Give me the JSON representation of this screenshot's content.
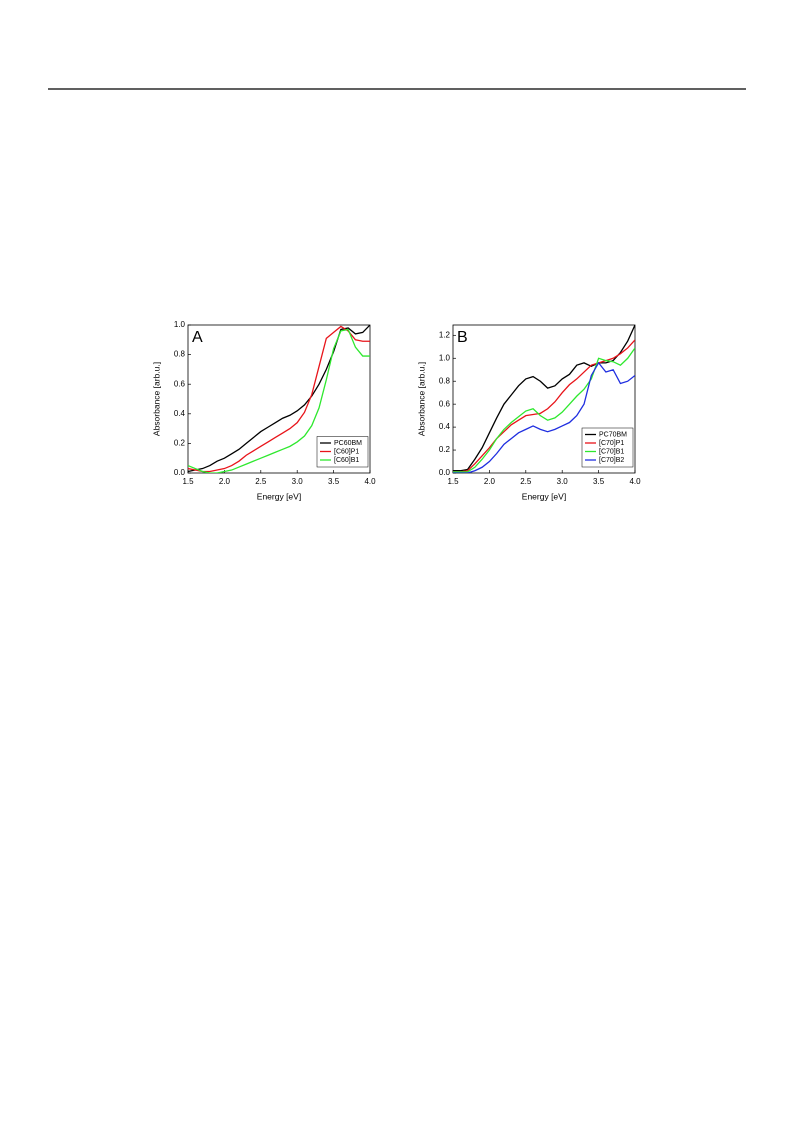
{
  "chart_data": [
    {
      "type": "line",
      "panel_label": "A",
      "x_label": "Energy [eV]",
      "y_label": "Absorbance [arb.u.]",
      "x": [
        1.5,
        1.6,
        1.7,
        1.8,
        1.9,
        2.0,
        2.1,
        2.2,
        2.3,
        2.4,
        2.5,
        2.6,
        2.7,
        2.8,
        2.9,
        3.0,
        3.1,
        3.2,
        3.3,
        3.4,
        3.5,
        3.6,
        3.7,
        3.8,
        3.9,
        4.0
      ],
      "xlim": [
        1.5,
        4.0
      ],
      "xticks": [
        1.5,
        {
          "value": 2.0,
          "label": "2.0"
        },
        2.5,
        {
          "value": 3.0,
          "label": "3.0"
        },
        3.5,
        {
          "value": 4.0,
          "label": "4.0"
        }
      ],
      "ylim": [
        0,
        1.0
      ],
      "yticks": [
        {
          "value": 0,
          "label": "0.0"
        },
        0.2,
        0.4,
        0.6,
        0.8,
        {
          "value": 1.0,
          "label": "1.0"
        }
      ],
      "legend": "lower right",
      "series": [
        {
          "name": "PC60BM",
          "color": "#000000",
          "values": [
            0.01,
            0.02,
            0.03,
            0.05,
            0.08,
            0.1,
            0.13,
            0.16,
            0.2,
            0.24,
            0.28,
            0.31,
            0.34,
            0.37,
            0.39,
            0.42,
            0.46,
            0.52,
            0.6,
            0.7,
            0.82,
            0.97,
            0.98,
            0.94,
            0.95,
            1.0
          ]
        },
        {
          "name": "[C60]P1",
          "color": "#e8141a",
          "values": [
            0.03,
            0.02,
            0.01,
            0.01,
            0.02,
            0.03,
            0.05,
            0.08,
            0.12,
            0.15,
            0.18,
            0.21,
            0.24,
            0.27,
            0.3,
            0.34,
            0.41,
            0.53,
            0.72,
            0.91,
            0.95,
            0.99,
            0.96,
            0.9,
            0.89,
            0.89
          ]
        },
        {
          "name": "[C60]B1",
          "color": "#2ee82e",
          "values": [
            0.05,
            0.03,
            0.01,
            0.0,
            0.0,
            0.01,
            0.02,
            0.04,
            0.06,
            0.08,
            0.1,
            0.12,
            0.14,
            0.16,
            0.18,
            0.21,
            0.25,
            0.32,
            0.44,
            0.63,
            0.84,
            0.96,
            0.97,
            0.85,
            0.79,
            0.79
          ]
        }
      ]
    },
    {
      "type": "line",
      "panel_label": "B",
      "x_label": "Energy [eV]",
      "y_label": "Absorbance [arb.u.]",
      "x": [
        1.5,
        1.6,
        1.7,
        1.8,
        1.9,
        2.0,
        2.1,
        2.2,
        2.3,
        2.4,
        2.5,
        2.6,
        2.7,
        2.8,
        2.9,
        3.0,
        3.1,
        3.2,
        3.3,
        3.4,
        3.5,
        3.6,
        3.7,
        3.8,
        3.9,
        4.0
      ],
      "xlim": [
        1.5,
        4.0
      ],
      "xticks": [
        1.5,
        {
          "value": 2.0,
          "label": "2.0"
        },
        2.5,
        {
          "value": 3.0,
          "label": "3.0"
        },
        3.5,
        {
          "value": 4.0,
          "label": "4.0"
        }
      ],
      "ylim": [
        0,
        1.29
      ],
      "yticks": [
        {
          "value": 0,
          "label": "0.0"
        },
        0.2,
        0.4,
        0.6,
        0.8,
        {
          "value": 1.0,
          "label": "1.0"
        },
        1.2
      ],
      "legend": "lower right",
      "series": [
        {
          "name": "PC70BM",
          "color": "#000000",
          "values": [
            0.02,
            0.02,
            0.03,
            0.12,
            0.22,
            0.35,
            0.48,
            0.6,
            0.68,
            0.76,
            0.82,
            0.84,
            0.8,
            0.74,
            0.76,
            0.82,
            0.86,
            0.94,
            0.96,
            0.93,
            0.96,
            0.96,
            0.98,
            1.05,
            1.15,
            1.29
          ]
        },
        {
          "name": "[C70]P1",
          "color": "#e8141a",
          "values": [
            0.01,
            0.01,
            0.02,
            0.08,
            0.15,
            0.22,
            0.3,
            0.36,
            0.42,
            0.46,
            0.5,
            0.51,
            0.52,
            0.56,
            0.62,
            0.7,
            0.77,
            0.82,
            0.88,
            0.94,
            0.96,
            0.98,
            1.0,
            1.04,
            1.09,
            1.16
          ]
        },
        {
          "name": "[C70]B1",
          "color": "#2ee82e",
          "values": [
            0.01,
            0.01,
            0.01,
            0.05,
            0.12,
            0.2,
            0.3,
            0.38,
            0.44,
            0.49,
            0.54,
            0.56,
            0.5,
            0.46,
            0.48,
            0.53,
            0.6,
            0.67,
            0.73,
            0.82,
            1.0,
            0.98,
            0.97,
            0.94,
            1.0,
            1.09
          ]
        },
        {
          "name": "[C70]B2",
          "color": "#1f2ee0",
          "values": [
            0.0,
            0.0,
            0.0,
            0.02,
            0.05,
            0.1,
            0.17,
            0.25,
            0.3,
            0.35,
            0.38,
            0.41,
            0.38,
            0.36,
            0.38,
            0.41,
            0.44,
            0.5,
            0.6,
            0.85,
            0.96,
            0.88,
            0.9,
            0.78,
            0.8,
            0.85
          ]
        }
      ]
    }
  ]
}
